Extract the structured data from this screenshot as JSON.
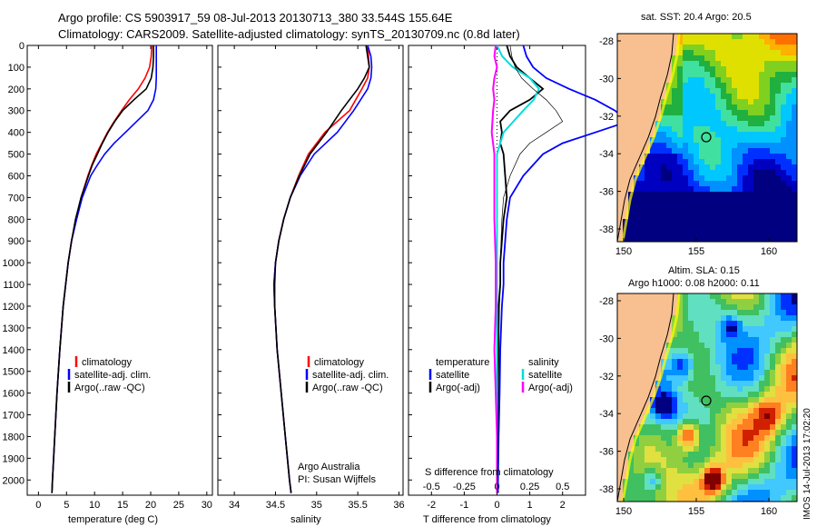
{
  "header": {
    "line1": "Argo profile: CS 5903917_59 08-Jul-2013 20130713_380 33.544S 155.64E",
    "line2": "Climatology: CARS2009. Satellite-adjusted climatology: synTS_20130709.nc (0.8d later)"
  },
  "depth_axis": {
    "ticks": [
      0,
      100,
      200,
      300,
      400,
      500,
      600,
      700,
      800,
      900,
      1000,
      1100,
      1200,
      1300,
      1400,
      1500,
      1600,
      1700,
      1800,
      1900,
      2000
    ],
    "range": [
      0,
      2070
    ]
  },
  "chart_data": [
    {
      "type": "line",
      "name": "temperature-panel",
      "xlabel": "temperature (deg C)",
      "xticks": [
        0,
        5,
        10,
        15,
        20,
        25,
        30
      ],
      "xlim": [
        -2,
        31
      ],
      "legend": [
        "climatology",
        "satellite-adj. clim.",
        "Argo(..raw -QC)"
      ],
      "series": [
        {
          "name": "climatology",
          "color": "#ff0000",
          "depth": [
            0,
            50,
            100,
            150,
            200,
            250,
            300,
            350,
            400,
            450,
            500,
            550,
            600,
            700,
            800,
            900,
            1000,
            1200,
            1400,
            1600,
            1800,
            2000,
            2060
          ],
          "values": [
            20.2,
            20.1,
            19.8,
            19.0,
            17.8,
            16.2,
            14.8,
            13.5,
            12.3,
            11.3,
            10.3,
            9.5,
            8.8,
            7.6,
            6.7,
            5.9,
            5.3,
            4.4,
            3.8,
            3.3,
            2.9,
            2.5,
            2.4
          ]
        },
        {
          "name": "satellite-adj. clim.",
          "color": "#0000ff",
          "depth": [
            0,
            50,
            100,
            150,
            200,
            250,
            300,
            350,
            400,
            450,
            500,
            550,
            600,
            700,
            800,
            900,
            1000,
            1200,
            1400,
            1600,
            1800,
            2000,
            2060
          ],
          "values": [
            21.0,
            21.0,
            21.0,
            21.0,
            20.9,
            20.5,
            19.5,
            17.5,
            15.5,
            13.5,
            11.8,
            10.5,
            9.3,
            7.8,
            6.8,
            5.9,
            5.3,
            4.4,
            3.8,
            3.3,
            2.9,
            2.5,
            2.4
          ]
        },
        {
          "name": "Argo(..raw -QC)",
          "color": "#000000",
          "depth": [
            0,
            50,
            100,
            150,
            200,
            250,
            300,
            350,
            400,
            450,
            500,
            550,
            600,
            700,
            800,
            900,
            1000,
            1200,
            1400,
            1600,
            1800,
            2000,
            2060
          ],
          "values": [
            20.5,
            20.5,
            20.4,
            20.1,
            19.2,
            17.0,
            15.0,
            13.6,
            12.4,
            11.4,
            10.5,
            9.6,
            8.9,
            7.6,
            6.6,
            5.9,
            5.3,
            4.4,
            3.8,
            3.3,
            2.9,
            2.5,
            2.4
          ]
        }
      ]
    },
    {
      "type": "line",
      "name": "salinity-panel",
      "xlabel": "salinity",
      "xticks": [
        34,
        34.5,
        35,
        35.5,
        36
      ],
      "xlim": [
        33.8,
        36.05
      ],
      "legend": [
        "climatology",
        "satellite-adj. clim.",
        "Argo(..raw -QC)"
      ],
      "series": [
        {
          "name": "climatology",
          "color": "#ff0000",
          "depth": [
            0,
            50,
            100,
            150,
            200,
            300,
            400,
            500,
            600,
            700,
            800,
            900,
            1000,
            1100,
            1200,
            1400,
            1600,
            1800,
            2000,
            2060
          ],
          "values": [
            35.62,
            35.63,
            35.64,
            35.62,
            35.55,
            35.4,
            35.1,
            34.9,
            34.78,
            34.68,
            34.6,
            34.54,
            34.5,
            34.48,
            34.49,
            34.52,
            34.57,
            34.62,
            34.67,
            34.69
          ]
        },
        {
          "name": "satellite-adj. clim.",
          "color": "#0000ff",
          "depth": [
            0,
            50,
            100,
            150,
            200,
            300,
            400,
            500,
            600,
            700,
            800,
            900,
            1000,
            1100,
            1200,
            1400,
            1600,
            1800,
            2000,
            2060
          ],
          "values": [
            35.62,
            35.66,
            35.67,
            35.66,
            35.62,
            35.45,
            35.25,
            34.97,
            34.8,
            34.68,
            34.6,
            34.54,
            34.5,
            34.48,
            34.49,
            34.52,
            34.57,
            34.62,
            34.67,
            34.69
          ]
        },
        {
          "name": "Argo(..raw -QC)",
          "color": "#000000",
          "depth": [
            0,
            50,
            100,
            150,
            200,
            300,
            400,
            500,
            600,
            700,
            800,
            900,
            1000,
            1100,
            1200,
            1400,
            1600,
            1800,
            2000,
            2060
          ],
          "values": [
            35.6,
            35.62,
            35.64,
            35.58,
            35.5,
            35.3,
            35.12,
            34.92,
            34.79,
            34.68,
            34.6,
            34.54,
            34.5,
            34.49,
            34.49,
            34.52,
            34.57,
            34.62,
            34.67,
            34.69
          ]
        }
      ]
    },
    {
      "type": "line",
      "name": "difference-panel",
      "xlabel_top": "S difference from climatology",
      "xlabel": "T difference from climatology",
      "xticks_T": [
        -2,
        -1,
        0,
        1,
        2
      ],
      "xticks_S": [
        -0.5,
        -0.25,
        0,
        0.25,
        0.5
      ],
      "xlim": [
        -2.7,
        2.7
      ],
      "legend_headers": [
        "temperature",
        "salinity"
      ],
      "legend": [
        "satellite",
        "Argo(-adj)",
        "satellite",
        "Argo(-adj)"
      ],
      "series": [
        {
          "name": "temperature satellite",
          "color": "#0000ff",
          "depth": [
            0,
            50,
            100,
            150,
            200,
            250,
            300,
            350,
            400,
            450,
            500,
            600,
            700,
            800,
            900,
            1000,
            1100,
            1200,
            1400,
            1600,
            1800,
            2000,
            2060
          ],
          "values": [
            0.8,
            0.9,
            1.1,
            1.5,
            2.2,
            3.0,
            3.6,
            4.0,
            3.0,
            2.0,
            1.4,
            0.8,
            0.4,
            0.3,
            0.25,
            0.2,
            0.2,
            0.15,
            0.1,
            0.08,
            0.05,
            0.03,
            0.03
          ]
        },
        {
          "name": "temperature Argo(-adj)",
          "color": "#000000",
          "depth": [
            0,
            50,
            100,
            150,
            200,
            250,
            300,
            350,
            400,
            450,
            500,
            600,
            700,
            800,
            900,
            1000,
            1100,
            1200,
            1400,
            1600,
            1800,
            2000,
            2060
          ],
          "values": [
            0.3,
            0.4,
            0.6,
            1.0,
            1.4,
            1.0,
            0.4,
            0.1,
            0.15,
            0.1,
            0.2,
            0.25,
            0.3,
            0.2,
            0.15,
            0.1,
            0.1,
            0.05,
            0.05,
            0.03,
            0.02,
            0.0,
            0.0
          ]
        },
        {
          "name": "salinity satellite",
          "color": "#00dddd",
          "depth": [
            0,
            50,
            100,
            150,
            200,
            250,
            300,
            400,
            500,
            600,
            800,
            1000,
            1200,
            1400,
            1600,
            1800,
            2000,
            2060
          ],
          "values": [
            0.0,
            0.04,
            0.12,
            0.25,
            0.32,
            0.28,
            0.2,
            0.05,
            0.0,
            0.0,
            0.0,
            0.0,
            0.0,
            0.0,
            0.0,
            0.0,
            0.0,
            0.0
          ]
        },
        {
          "name": "salinity Argo(-adj)",
          "color": "#ff00ff",
          "depth": [
            0,
            50,
            100,
            150,
            200,
            250,
            300,
            400,
            500,
            600,
            800,
            1000,
            1200,
            1400,
            1600,
            1800,
            2000,
            2060
          ],
          "values": [
            -0.01,
            -0.02,
            0.0,
            -0.02,
            -0.03,
            -0.02,
            -0.03,
            -0.04,
            -0.02,
            -0.02,
            -0.02,
            -0.01,
            -0.01,
            -0.02,
            -0.01,
            0.0,
            0.0,
            0.0
          ]
        }
      ]
    }
  ],
  "panel_text": {
    "institution": "Argo Australia",
    "pi": "PI: Susan Wijffels"
  },
  "maps": {
    "sst_title": "sat. SST: 20.4  Argo: 20.5",
    "sla_title1": "Altim. SLA: 0.15",
    "sla_title2": "Argo h1000: 0.08  h2000: 0.11",
    "lat_ticks": [
      "-28",
      "-30",
      "-32",
      "-34",
      "-36",
      "-38"
    ],
    "lon_ticks": [
      "150",
      "155",
      "160"
    ],
    "imos_stamp": "IMOS 14-Jul-2013 17:02:20",
    "colors": {
      "land": "#f8c090",
      "coast": "#000000"
    }
  }
}
